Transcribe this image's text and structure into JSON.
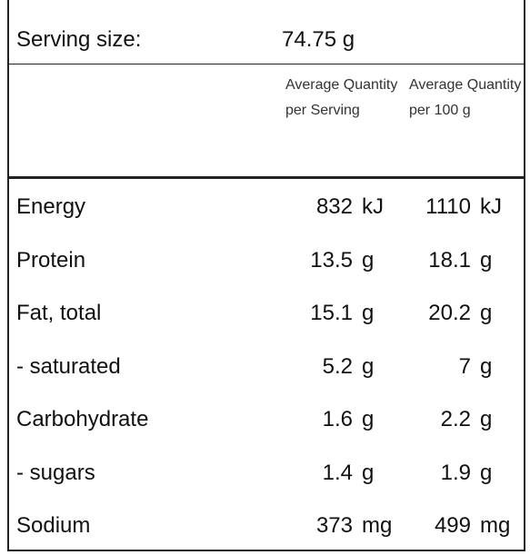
{
  "serving_size": {
    "label": "Serving size:",
    "value": "74.75 g"
  },
  "header": {
    "per_serving": "Average Quantity per Serving",
    "per_100g": "Average Quantity per 100 g"
  },
  "rows": [
    {
      "label": "Energy",
      "per_serving": {
        "value": 832,
        "unit": "kJ"
      },
      "per_100g": {
        "value": 1110,
        "unit": "kJ"
      }
    },
    {
      "label": "Protein",
      "per_serving": {
        "value": 13.5,
        "unit": "g"
      },
      "per_100g": {
        "value": 18.1,
        "unit": "g"
      }
    },
    {
      "label": "Fat, total",
      "per_serving": {
        "value": 15.1,
        "unit": "g"
      },
      "per_100g": {
        "value": 20.2,
        "unit": "g"
      }
    },
    {
      "label": "- saturated",
      "per_serving": {
        "value": 5.2,
        "unit": "g"
      },
      "per_100g": {
        "value": 7,
        "unit": "g"
      }
    },
    {
      "label": "Carbohydrate",
      "per_serving": {
        "value": 1.6,
        "unit": "g"
      },
      "per_100g": {
        "value": 2.2,
        "unit": "g"
      }
    },
    {
      "label": "- sugars",
      "per_serving": {
        "value": 1.4,
        "unit": "g"
      },
      "per_100g": {
        "value": 1.9,
        "unit": "g"
      }
    },
    {
      "label": "Sodium",
      "per_serving": {
        "value": 373,
        "unit": "mg"
      },
      "per_100g": {
        "value": 499,
        "unit": "mg"
      }
    }
  ]
}
